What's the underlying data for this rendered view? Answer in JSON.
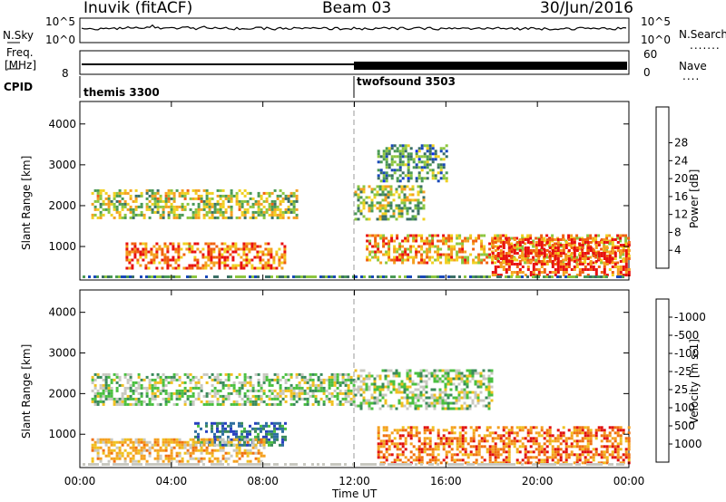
{
  "header": {
    "station": "Inuvik (fitACF)",
    "beam": "Beam 03",
    "date": "30/Jun/2016"
  },
  "top_panels": {
    "nsky_label": "N.Sky",
    "nsky_ticks": [
      "10^5",
      "10^0"
    ],
    "nsearch_label": "N.Search",
    "nsearch_ticks": [
      "10^5",
      "10^0"
    ],
    "freq_label": "Freq.",
    "freq_unit": "[MHz]",
    "freq_tick": "8",
    "nave_label": "Nave",
    "nave_ticks": [
      "60",
      "0"
    ],
    "cpid_label": "CPID",
    "cpid_segments": [
      {
        "name": "themis 3300",
        "start": "00:00"
      },
      {
        "name": "twofsound 3503",
        "start": "12:00"
      }
    ]
  },
  "chart_data": [
    {
      "type": "heatmap",
      "title": "",
      "xlabel": "Time UT",
      "ylabel": "Slant Range [km]",
      "x_ticks": [
        "00:00",
        "04:00",
        "08:00",
        "12:00",
        "16:00",
        "20:00",
        "00:00"
      ],
      "y_ticks": [
        1000,
        2000,
        3000,
        4000
      ],
      "ylim": [
        180,
        4550
      ],
      "colorbar": {
        "label": "Power [dB]",
        "ticks": [
          "4",
          "8",
          "12",
          "16",
          "20",
          "24",
          "28"
        ],
        "colors": [
          "#0a2cf0",
          "#1848b8",
          "#3a6f66",
          "#4a9a55",
          "#8cc63f",
          "#f0d020",
          "#f4a020",
          "#f06010",
          "#e81010"
        ]
      },
      "bands": [
        {
          "t": [
            0.5,
            9.5
          ],
          "range": [
            1700,
            2400
          ],
          "level": 0.55
        },
        {
          "t": [
            12,
            15
          ],
          "range": [
            1700,
            2500
          ],
          "level": 0.5
        },
        {
          "t": [
            13,
            16
          ],
          "range": [
            2600,
            3500
          ],
          "level": 0.35
        },
        {
          "t": [
            2,
            9
          ],
          "range": [
            500,
            1100
          ],
          "level": 0.8
        },
        {
          "t": [
            12.5,
            24
          ],
          "range": [
            600,
            1300
          ],
          "level": 0.7
        },
        {
          "t": [
            18,
            24
          ],
          "range": [
            300,
            1200
          ],
          "level": 0.9
        }
      ]
    },
    {
      "type": "heatmap",
      "title": "",
      "xlabel": "Time UT",
      "ylabel": "Slant Range [km]",
      "x_ticks": [
        "00:00",
        "04:00",
        "08:00",
        "12:00",
        "16:00",
        "20:00",
        "00:00"
      ],
      "y_ticks": [
        1000,
        2000,
        3000,
        4000
      ],
      "ylim": [
        180,
        4550
      ],
      "colorbar": {
        "label": "Velocity [m s-1]",
        "ticks": [
          "1000",
          "500",
          "100",
          "25",
          "-25",
          "-100",
          "-500",
          "-1000"
        ],
        "colors": [
          "#2840c0",
          "#2e6ea0",
          "#3a8a5a",
          "#4ac040",
          "#c8c8c0",
          "#f0c020",
          "#f4a020",
          "#f07010",
          "#e01010"
        ]
      },
      "bands": [
        {
          "t": [
            0.5,
            12
          ],
          "range": [
            1700,
            2500
          ],
          "level": 0.45
        },
        {
          "t": [
            12,
            18
          ],
          "range": [
            1600,
            2600
          ],
          "level": 0.45
        },
        {
          "t": [
            5,
            9
          ],
          "range": [
            700,
            1300
          ],
          "level": 0.2
        },
        {
          "t": [
            0.5,
            8
          ],
          "range": [
            300,
            900
          ],
          "level": 0.65
        },
        {
          "t": [
            13,
            24
          ],
          "range": [
            300,
            1200
          ],
          "level": 0.8
        }
      ]
    }
  ]
}
